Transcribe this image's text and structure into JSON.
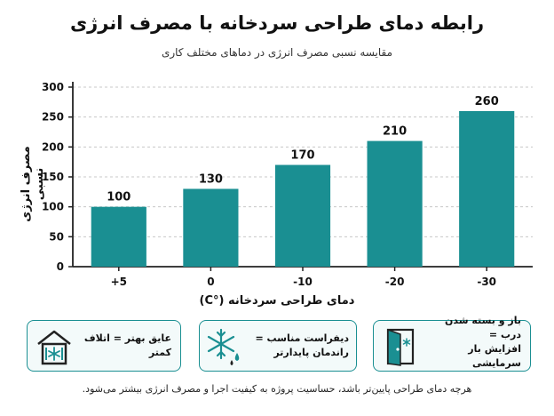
{
  "title": "رابطه دمای طراحی سردخانه با مصرف انرژی",
  "subtitle": "مقایسه نسبی مصرف انرژی در دماهای مختلف کاری",
  "chart_data": {
    "type": "bar",
    "categories": [
      "+5",
      "0",
      "-10",
      "-20",
      "-30"
    ],
    "values": [
      100,
      130,
      170,
      210,
      260
    ],
    "xlabel": "دمای طراحی سردخانه (°C)",
    "ylabel": "مصرف انرژی نسبی",
    "ylim": [
      0,
      300
    ],
    "yticks": [
      0,
      50,
      100,
      150,
      200,
      250,
      300
    ],
    "grid": true,
    "bar_color": "#1a8f92"
  },
  "cards": [
    {
      "text": "عایق بهتر = اتلاف کمتر",
      "icon": "insulated-house-icon"
    },
    {
      "text": "دیفراست مناسب = راندمان پایدارتر",
      "icon": "snowflake-defrost-icon"
    },
    {
      "text_line1": "باز و بسته شدن درب =",
      "text_line2": "افزایش بار سرمایشی",
      "icon": "door-icon"
    }
  ],
  "footnote": "هرچه دمای طراحی پایین‌تر باشد، حساسیت پروژه به کیفیت اجرا و مصرف انرژی بیشتر می‌شود."
}
